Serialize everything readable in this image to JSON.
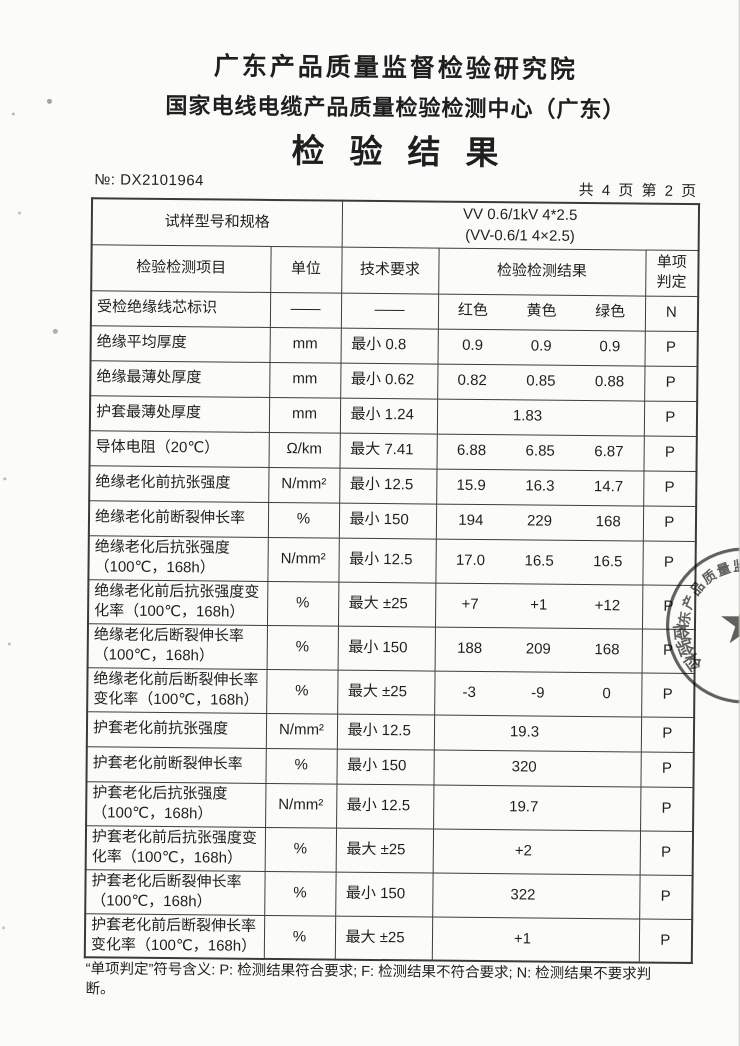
{
  "header": {
    "org_line1": "广东产品质量监督检验研究院",
    "org_line2": "国家电线电缆产品质量检验检测中心（广东）",
    "doc_title": "检验结果",
    "report_no_label": "№:",
    "report_no": "DX2101964",
    "pagination": "共 4 页 第 2 页"
  },
  "table": {
    "spec_label": "试样型号和规格",
    "spec_value_line1": "VV 0.6/1kV 4*2.5",
    "spec_value_line2": "(VV-0.6/1 4×2.5)",
    "columns": [
      "检验检测项目",
      "单位",
      "技术要求",
      "检验检测结果",
      "单项判定"
    ],
    "rows": [
      {
        "item": "受检绝缘线芯标识",
        "unit": "——",
        "requirement": "——",
        "results": [
          "红色",
          "黄色",
          "绿色"
        ],
        "judgment": "N"
      },
      {
        "item": "绝缘平均厚度",
        "unit": "mm",
        "requirement": "最小 0.8",
        "results": [
          "0.9",
          "0.9",
          "0.9"
        ],
        "judgment": "P"
      },
      {
        "item": "绝缘最薄处厚度",
        "unit": "mm",
        "requirement": "最小 0.62",
        "results": [
          "0.82",
          "0.85",
          "0.88"
        ],
        "judgment": "P"
      },
      {
        "item": "护套最薄处厚度",
        "unit": "mm",
        "requirement": "最小 1.24",
        "results": [
          "1.83"
        ],
        "judgment": "P"
      },
      {
        "item": "导体电阻（20℃）",
        "unit": "Ω/km",
        "requirement": "最大 7.41",
        "results": [
          "6.88",
          "6.85",
          "6.87"
        ],
        "judgment": "P"
      },
      {
        "item": "绝缘老化前抗张强度",
        "unit": "N/mm²",
        "requirement": "最小 12.5",
        "results": [
          "15.9",
          "16.3",
          "14.7"
        ],
        "judgment": "P"
      },
      {
        "item": "绝缘老化前断裂伸长率",
        "unit": "%",
        "requirement": "最小 150",
        "results": [
          "194",
          "229",
          "168"
        ],
        "judgment": "P"
      },
      {
        "item": "绝缘老化后抗张强度\n（100℃，168h）",
        "unit": "N/mm²",
        "requirement": "最小 12.5",
        "results": [
          "17.0",
          "16.5",
          "16.5"
        ],
        "judgment": "P"
      },
      {
        "item": "绝缘老化前后抗张强度变\n化率（100℃，168h）",
        "unit": "%",
        "requirement": "最大 ±25",
        "results": [
          "+7",
          "+1",
          "+12"
        ],
        "judgment": "P"
      },
      {
        "item": "绝缘老化后断裂伸长率\n（100℃，168h）",
        "unit": "%",
        "requirement": "最小 150",
        "results": [
          "188",
          "209",
          "168"
        ],
        "judgment": "P"
      },
      {
        "item": "绝缘老化前后断裂伸长率\n变化率（100℃，168h）",
        "unit": "%",
        "requirement": "最大 ±25",
        "results": [
          "-3",
          "-9",
          "0"
        ],
        "judgment": "P"
      },
      {
        "item": "护套老化前抗张强度",
        "unit": "N/mm²",
        "requirement": "最小 12.5",
        "results": [
          "19.3"
        ],
        "judgment": "P"
      },
      {
        "item": "护套老化前断裂伸长率",
        "unit": "%",
        "requirement": "最小 150",
        "results": [
          "320"
        ],
        "judgment": "P"
      },
      {
        "item": "护套老化后抗张强度\n（100℃，168h）",
        "unit": "N/mm²",
        "requirement": "最小 12.5",
        "results": [
          "19.7"
        ],
        "judgment": "P"
      },
      {
        "item": "护套老化前后抗张强度变\n化率（100℃，168h）",
        "unit": "%",
        "requirement": "最大 ±25",
        "results": [
          "+2"
        ],
        "judgment": "P"
      },
      {
        "item": "护套老化后断裂伸长率\n（100℃，168h）",
        "unit": "%",
        "requirement": "最小 150",
        "results": [
          "322"
        ],
        "judgment": "P"
      },
      {
        "item": "护套老化前后断裂伸长率\n变化率（100℃，168h）",
        "unit": "%",
        "requirement": "最大 ±25",
        "results": [
          "+1"
        ],
        "judgment": "P"
      }
    ]
  },
  "footer": {
    "note": "“单项判定”符号含义: P: 检测结果符合要求; F: 检测结果不符合要求; N: 检测结果不要求判断。"
  },
  "stamp": {
    "arc_text": "广东产品质量监",
    "inner_text": "检验检",
    "star_icon": "★"
  },
  "colors": {
    "paper": "#fbfbf9",
    "ink": "#1f1f1f",
    "border": "#3d3d3b",
    "stamp": "#45443f"
  }
}
